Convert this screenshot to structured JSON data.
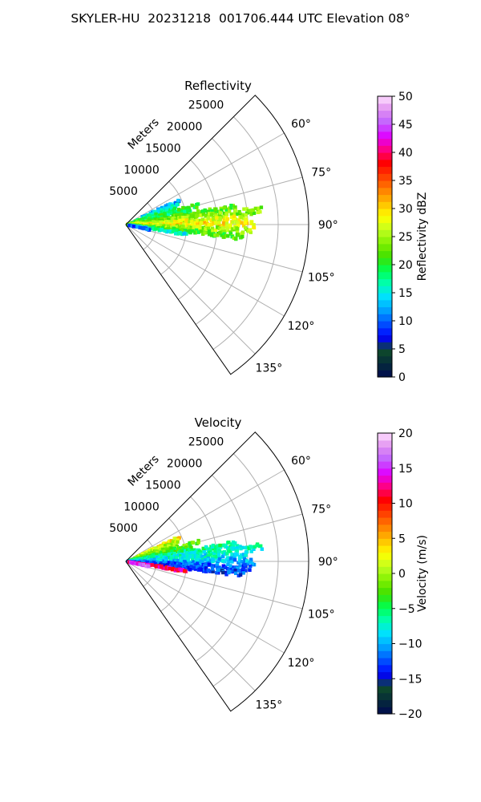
{
  "figure": {
    "title": "SKYLER-HU  20231218  001706.444 UTC Elevation 08°"
  },
  "chart_data": [
    {
      "type": "heatmap",
      "projection": "polar-sector",
      "title": "Reflectivity",
      "range_label": "Meters",
      "range_ticks": [
        5000,
        10000,
        15000,
        20000,
        25000
      ],
      "range_tick_labels": [
        "5000",
        "10000",
        "15000",
        "20000",
        "25000"
      ],
      "range_limit_m": 30000,
      "azimuth_limits_deg": [
        45,
        145
      ],
      "azimuth_ticks_deg": [
        60,
        75,
        90,
        105,
        120,
        135
      ],
      "azimuth_tick_labels": [
        "60°",
        "75°",
        "90°",
        "105°",
        "120°",
        "135°"
      ],
      "grid": true,
      "colorbar": {
        "label": "Reflectivity dBZ",
        "min": 0,
        "max": 50,
        "ticks": [
          0,
          5,
          10,
          15,
          20,
          25,
          30,
          35,
          40,
          45,
          50
        ],
        "tick_labels": [
          "0",
          "5",
          "10",
          "15",
          "20",
          "25",
          "30",
          "35",
          "40",
          "45",
          "50"
        ],
        "colors": [
          "#000a50",
          "#052a3a",
          "#0f4a2a",
          "#0000ff",
          "#0050ff",
          "#00a0ff",
          "#00e0ff",
          "#00ffb0",
          "#00ff50",
          "#40e000",
          "#80f000",
          "#c0ff20",
          "#ffff00",
          "#ffc000",
          "#ff8000",
          "#ff4000",
          "#ff0000",
          "#ff0080",
          "#e000ff",
          "#c060ff",
          "#e090f0",
          "#ffe0ff"
        ]
      },
      "echo_summary": {
        "azimuth_range_deg": [
          62,
          102
        ],
        "range_extent_m": [
          0,
          22000
        ],
        "typical_value_dbz": [
          15,
          30
        ],
        "max_value_dbz": 38
      },
      "echo_rays": [
        {
          "az": 66,
          "r0": 3000,
          "r1": 9500,
          "v": 12
        },
        {
          "az": 69,
          "r0": 2000,
          "r1": 9000,
          "v": 16
        },
        {
          "az": 72,
          "r0": 1500,
          "r1": 8500,
          "v": 18
        },
        {
          "az": 75,
          "r0": 1000,
          "r1": 12000,
          "v": 20
        },
        {
          "az": 78,
          "r0": 800,
          "r1": 11000,
          "v": 19
        },
        {
          "az": 81,
          "r0": 500,
          "r1": 18000,
          "v": 22
        },
        {
          "az": 84,
          "r0": 300,
          "r1": 22000,
          "v": 24
        },
        {
          "az": 87,
          "r0": 300,
          "r1": 20000,
          "v": 27
        },
        {
          "az": 90,
          "r0": 300,
          "r1": 21000,
          "v": 29
        },
        {
          "az": 93,
          "r0": 300,
          "r1": 20500,
          "v": 25
        },
        {
          "az": 96,
          "r0": 300,
          "r1": 19000,
          "v": 22
        },
        {
          "az": 99,
          "r0": 500,
          "r1": 10000,
          "v": 16
        },
        {
          "az": 102,
          "r0": 500,
          "r1": 4000,
          "v": 10
        }
      ]
    },
    {
      "type": "heatmap",
      "projection": "polar-sector",
      "title": "Velocity",
      "range_label": "Meters",
      "range_ticks": [
        5000,
        10000,
        15000,
        20000,
        25000
      ],
      "range_tick_labels": [
        "5000",
        "10000",
        "15000",
        "20000",
        "25000"
      ],
      "range_limit_m": 30000,
      "azimuth_limits_deg": [
        45,
        145
      ],
      "azimuth_ticks_deg": [
        60,
        75,
        90,
        105,
        120,
        135
      ],
      "azimuth_tick_labels": [
        "60°",
        "75°",
        "90°",
        "105°",
        "120°",
        "135°"
      ],
      "grid": true,
      "colorbar": {
        "label": "Velocity (m/s)",
        "min": -20,
        "max": 20,
        "ticks": [
          -20,
          -15,
          -10,
          -5,
          0,
          5,
          10,
          15,
          20
        ],
        "tick_labels": [
          "−20",
          "−15",
          "−10",
          "−5",
          "0",
          "5",
          "10",
          "15",
          "20"
        ],
        "colors": [
          "#000a50",
          "#052a3a",
          "#0f4a2a",
          "#0000ff",
          "#0050ff",
          "#00a0ff",
          "#00e0ff",
          "#00ffb0",
          "#00ff50",
          "#40e000",
          "#80f000",
          "#c0ff20",
          "#ffff00",
          "#ffc000",
          "#ff8000",
          "#ff4000",
          "#ff0000",
          "#ff0080",
          "#e000ff",
          "#c060ff",
          "#e090f0",
          "#ffe0ff"
        ]
      },
      "echo_summary": {
        "azimuth_range_deg": [
          62,
          102
        ],
        "range_extent_m": [
          0,
          22000
        ],
        "typical_value_ms": [
          -12,
          2
        ],
        "notes_values_ms": [
          8,
          16
        ]
      },
      "echo_rays": [
        {
          "az": 66,
          "r0": 3000,
          "r1": 9500,
          "v": 3
        },
        {
          "az": 69,
          "r0": 2000,
          "r1": 9000,
          "v": 1
        },
        {
          "az": 72,
          "r0": 1500,
          "r1": 8500,
          "v": 0
        },
        {
          "az": 75,
          "r0": 1000,
          "r1": 12000,
          "v": -2
        },
        {
          "az": 78,
          "r0": 800,
          "r1": 11000,
          "v": -4
        },
        {
          "az": 81,
          "r0": 500,
          "r1": 18000,
          "v": -6
        },
        {
          "az": 84,
          "r0": 300,
          "r1": 22000,
          "v": -7
        },
        {
          "az": 87,
          "r0": 300,
          "r1": 20000,
          "v": -8
        },
        {
          "az": 90,
          "r0": 300,
          "r1": 21000,
          "v": -10
        },
        {
          "az": 93,
          "r0": 300,
          "r1": 20500,
          "v": -12
        },
        {
          "az": 96,
          "r0": 300,
          "r1": 19000,
          "v": -13
        },
        {
          "az": 99,
          "r0": 500,
          "r1": 10000,
          "v": 12
        },
        {
          "az": 102,
          "r0": 500,
          "r1": 4000,
          "v": 16
        }
      ]
    }
  ]
}
